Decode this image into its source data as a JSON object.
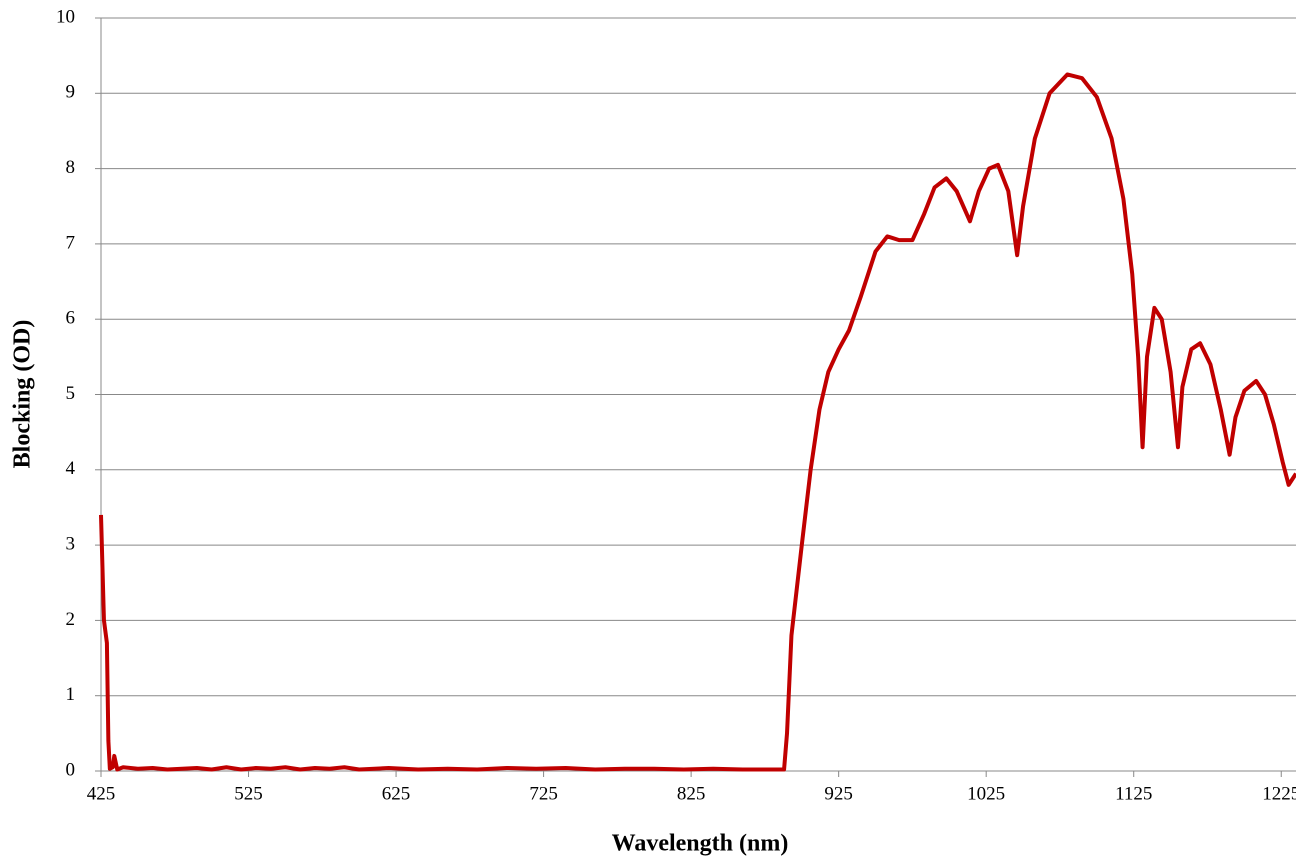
{
  "chart_data": {
    "type": "line",
    "xlabel": "Wavelength (nm)",
    "ylabel": "Blocking (OD)",
    "xlim": [
      425,
      1235
    ],
    "xticks": [
      425,
      525,
      625,
      725,
      825,
      925,
      1025,
      1125,
      1225
    ],
    "ylim": [
      0,
      10
    ],
    "yticks": [
      0,
      1,
      2,
      3,
      4,
      5,
      6,
      7,
      8,
      9,
      10
    ],
    "grid": true,
    "series": [
      {
        "name": "Blocking",
        "color": "#c00000",
        "x": [
          425,
          427,
          429,
          430,
          431,
          433,
          434,
          436,
          440,
          450,
          460,
          470,
          480,
          490,
          500,
          510,
          520,
          530,
          540,
          550,
          560,
          570,
          580,
          590,
          600,
          620,
          640,
          660,
          680,
          700,
          720,
          740,
          760,
          780,
          800,
          820,
          840,
          860,
          880,
          888,
          890,
          893,
          900,
          906,
          912,
          918,
          925,
          932,
          940,
          950,
          958,
          966,
          975,
          983,
          990,
          998,
          1005,
          1014,
          1020,
          1027,
          1033,
          1040,
          1046,
          1050,
          1058,
          1068,
          1080,
          1090,
          1100,
          1110,
          1118,
          1124,
          1128,
          1131,
          1134,
          1139,
          1144,
          1150,
          1155,
          1158,
          1164,
          1170,
          1177,
          1184,
          1190,
          1194,
          1200,
          1208,
          1214,
          1220,
          1226,
          1230,
          1235
        ],
        "values": [
          3.4,
          2.0,
          1.7,
          0.4,
          0.03,
          0.05,
          0.2,
          0.02,
          0.05,
          0.03,
          0.04,
          0.02,
          0.03,
          0.04,
          0.02,
          0.05,
          0.02,
          0.04,
          0.03,
          0.05,
          0.02,
          0.04,
          0.03,
          0.05,
          0.02,
          0.04,
          0.02,
          0.03,
          0.02,
          0.04,
          0.03,
          0.04,
          0.02,
          0.03,
          0.03,
          0.02,
          0.03,
          0.02,
          0.02,
          0.02,
          0.5,
          1.8,
          3.0,
          4.0,
          4.8,
          5.3,
          5.6,
          5.85,
          6.3,
          6.9,
          7.1,
          7.05,
          7.05,
          7.4,
          7.75,
          7.87,
          7.7,
          7.3,
          7.7,
          8.0,
          8.05,
          7.7,
          6.85,
          7.5,
          8.4,
          9.0,
          9.25,
          9.2,
          8.95,
          8.4,
          7.6,
          6.6,
          5.5,
          4.3,
          5.5,
          6.15,
          6.0,
          5.3,
          4.3,
          5.1,
          5.6,
          5.68,
          5.4,
          4.8,
          4.2,
          4.7,
          5.05,
          5.18,
          5.0,
          4.6,
          4.1,
          3.8,
          3.95
        ]
      }
    ]
  }
}
